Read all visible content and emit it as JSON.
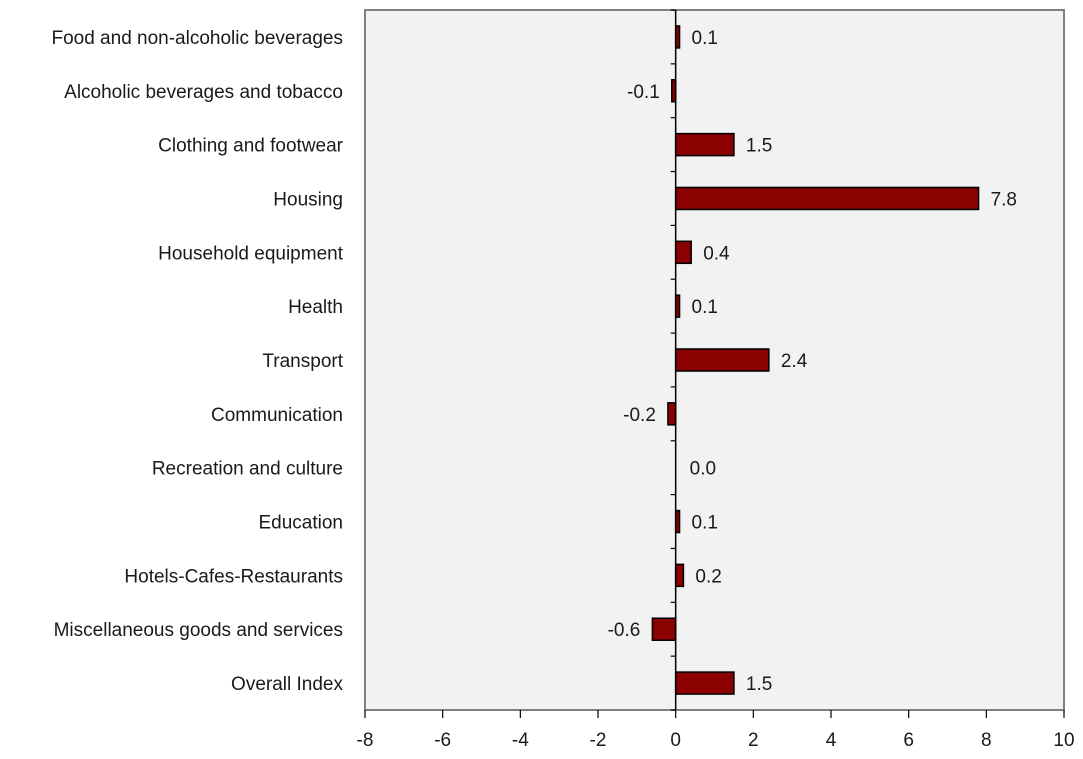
{
  "chart_data": {
    "type": "bar",
    "orientation": "horizontal",
    "categories": [
      "Food and non-alcoholic beverages",
      "Alcoholic beverages and tobacco",
      "Clothing and footwear",
      "Housing",
      "Household equipment",
      "Health",
      "Transport",
      "Communication",
      "Recreation and culture",
      "Education",
      "Hotels-Cafes-Restaurants",
      "Miscellaneous goods and services",
      "Overall Index"
    ],
    "values": [
      0.1,
      -0.1,
      1.5,
      7.8,
      0.4,
      0.1,
      2.4,
      -0.2,
      0.0,
      0.1,
      0.2,
      -0.6,
      1.5
    ],
    "value_labels": [
      "0.1",
      "-0.1",
      "1.5",
      "7.8",
      "0.4",
      "0.1",
      "2.4",
      "-0.2",
      "0.0",
      "0.1",
      "0.2",
      "-0.6",
      "1.5"
    ],
    "xlim": [
      -8,
      10
    ],
    "xticks": [
      -8,
      -6,
      -4,
      -2,
      0,
      2,
      4,
      6,
      8,
      10
    ],
    "xtick_labels": [
      "-8",
      "-6",
      "-4",
      "-2",
      "0",
      "2",
      "4",
      "6",
      "8",
      "10"
    ],
    "grid": false,
    "legend": "none",
    "colors": {
      "bar_fill": "#8b0000",
      "bar_stroke": "#000000",
      "plot_background": "#f2f2f2",
      "plot_border": "#808080",
      "axis": "#000000"
    }
  }
}
